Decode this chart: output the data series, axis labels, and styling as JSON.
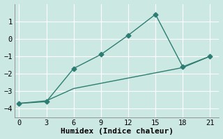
{
  "line1_x": [
    0,
    3,
    6,
    9,
    12,
    15,
    18,
    21
  ],
  "line1_y": [
    -3.7,
    -3.6,
    -1.7,
    -0.9,
    0.2,
    1.4,
    -1.6,
    -1.0
  ],
  "line2_x": [
    0,
    3,
    6,
    9,
    12,
    15,
    18,
    21
  ],
  "line2_y": [
    -3.7,
    -3.55,
    -2.85,
    -2.55,
    -2.25,
    -1.95,
    -1.65,
    -1.0
  ],
  "color": "#2e7d72",
  "bg_color": "#cce8e3",
  "grid_color": "#ffffff",
  "xlabel": "Humidex (Indice chaleur)",
  "xlim": [
    -0.5,
    22
  ],
  "ylim": [
    -4.5,
    2.0
  ],
  "xticks": [
    0,
    3,
    6,
    9,
    12,
    15,
    18,
    21
  ],
  "yticks": [
    -4,
    -3,
    -2,
    -1,
    0,
    1
  ],
  "marker": "D",
  "markersize": 3.5,
  "linewidth": 1.0,
  "font": "monospace",
  "xlabel_fontsize": 8,
  "tick_fontsize": 7.5
}
